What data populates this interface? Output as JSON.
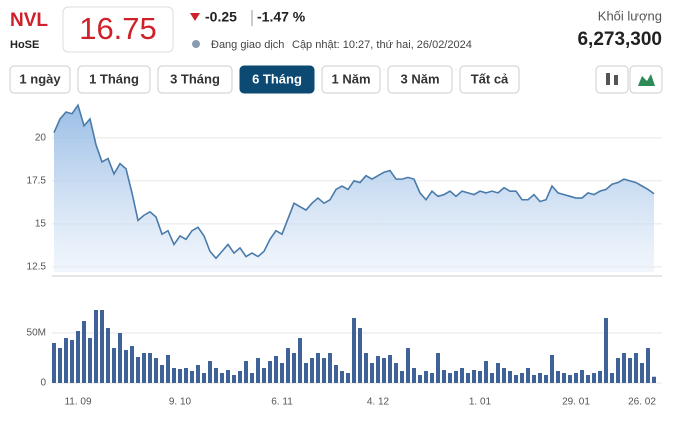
{
  "header": {
    "symbol": "NVL",
    "exchange": "HoSE",
    "price": "16.75",
    "change": "-0.25",
    "change_pct": "-1.47 %",
    "status": "Đang giao dịch",
    "updated": "Cập nhật: 10:27, thứ hai, 26/02/2024",
    "volume_label": "Khối lượng",
    "volume": "6,273,300"
  },
  "range_buttons": [
    "1 ngày",
    "1 Tháng",
    "3 Tháng",
    "6 Tháng",
    "1 Năm",
    "3 Năm",
    "Tất cả"
  ],
  "active_range": "6 Tháng",
  "chart_data": [
    {
      "type": "area",
      "color": "#4a7bab",
      "categories": [
        null,
        null,
        null,
        null,
        "11. 09",
        null,
        null,
        null,
        null,
        null,
        null,
        null,
        null,
        null,
        null,
        null,
        null,
        null,
        null,
        null,
        null,
        "9. 10",
        null,
        null,
        null,
        null,
        null,
        null,
        null,
        null,
        null,
        null,
        null,
        null,
        null,
        null,
        null,
        null,
        "6. 11",
        null,
        null,
        null,
        null,
        null,
        null,
        null,
        null,
        null,
        null,
        null,
        null,
        null,
        null,
        null,
        "4. 12",
        null,
        null,
        null,
        null,
        null,
        null,
        null,
        null,
        null,
        null,
        null,
        null,
        null,
        null,
        null,
        null,
        "1. 01",
        null,
        null,
        null,
        null,
        null,
        null,
        null,
        null,
        null,
        null,
        null,
        null,
        null,
        null,
        null,
        "29. 01",
        null,
        null,
        null,
        null,
        null,
        null,
        null,
        null,
        null,
        null,
        "26. 02",
        null,
        null
      ],
      "values": [
        20.3,
        21.1,
        21.5,
        21.4,
        21.9,
        20.7,
        21.1,
        19.6,
        18.6,
        18.8,
        17.9,
        18.5,
        18.2,
        16.8,
        15.2,
        15.5,
        15.7,
        15.4,
        14.4,
        14.6,
        13.8,
        14.3,
        14.1,
        14.6,
        14.8,
        14.3,
        13.4,
        13.0,
        13.4,
        13.8,
        13.3,
        13.6,
        13.1,
        13.3,
        13.1,
        13.4,
        14.1,
        14.6,
        14.4,
        15.3,
        16.2,
        16.0,
        15.8,
        16.2,
        16.5,
        16.2,
        16.4,
        17.0,
        17.2,
        17.0,
        17.5,
        17.4,
        17.8,
        17.6,
        17.8,
        18.0,
        18.1,
        17.6,
        17.6,
        17.7,
        17.6,
        16.8,
        16.4,
        16.9,
        16.6,
        16.7,
        16.9,
        16.6,
        16.9,
        16.8,
        16.7,
        16.9,
        16.8,
        16.9,
        16.8,
        17.1,
        16.9,
        16.9,
        16.4,
        16.4,
        16.7,
        16.3,
        16.4,
        17.2,
        16.8,
        16.7,
        16.6,
        16.5,
        16.5,
        16.8,
        16.7,
        16.9,
        17.0,
        17.3,
        17.4,
        17.6,
        17.5,
        17.4,
        17.2,
        17.0,
        16.75
      ],
      "ylim": [
        12.2,
        22.2
      ],
      "yticks": [
        12.5,
        15,
        17.5,
        20
      ],
      "grid": true
    },
    {
      "type": "bar",
      "color": "#3f6398",
      "values": [
        40000000,
        35000000,
        45000000,
        43000000,
        52000000,
        62000000,
        45000000,
        73000000,
        73000000,
        55000000,
        35000000,
        50000000,
        33000000,
        37000000,
        26000000,
        30000000,
        30000000,
        25000000,
        18000000,
        28000000,
        15000000,
        14000000,
        15000000,
        12000000,
        18000000,
        10000000,
        22000000,
        15000000,
        10000000,
        13000000,
        8000000,
        12000000,
        22000000,
        10000000,
        25000000,
        15000000,
        22000000,
        27000000,
        20000000,
        35000000,
        30000000,
        45000000,
        20000000,
        25000000,
        30000000,
        25000000,
        30000000,
        18000000,
        12000000,
        10000000,
        65000000,
        55000000,
        30000000,
        20000000,
        27000000,
        25000000,
        28000000,
        20000000,
        12000000,
        35000000,
        15000000,
        8000000,
        12000000,
        10000000,
        30000000,
        13000000,
        10000000,
        12000000,
        15000000,
        10000000,
        13000000,
        12000000,
        22000000,
        10000000,
        20000000,
        15000000,
        12000000,
        8000000,
        10000000,
        15000000,
        8000000,
        10000000,
        8000000,
        28000000,
        12000000,
        10000000,
        8000000,
        10000000,
        13000000,
        8000000,
        10000000,
        12000000,
        65000000,
        10000000,
        25000000,
        30000000,
        25000000,
        30000000,
        20000000,
        35000000,
        6273300
      ],
      "ylim": [
        0,
        98000000
      ],
      "yticks": [
        0,
        {
          "value": 50000000,
          "label": "50M"
        }
      ],
      "grid": true
    }
  ]
}
